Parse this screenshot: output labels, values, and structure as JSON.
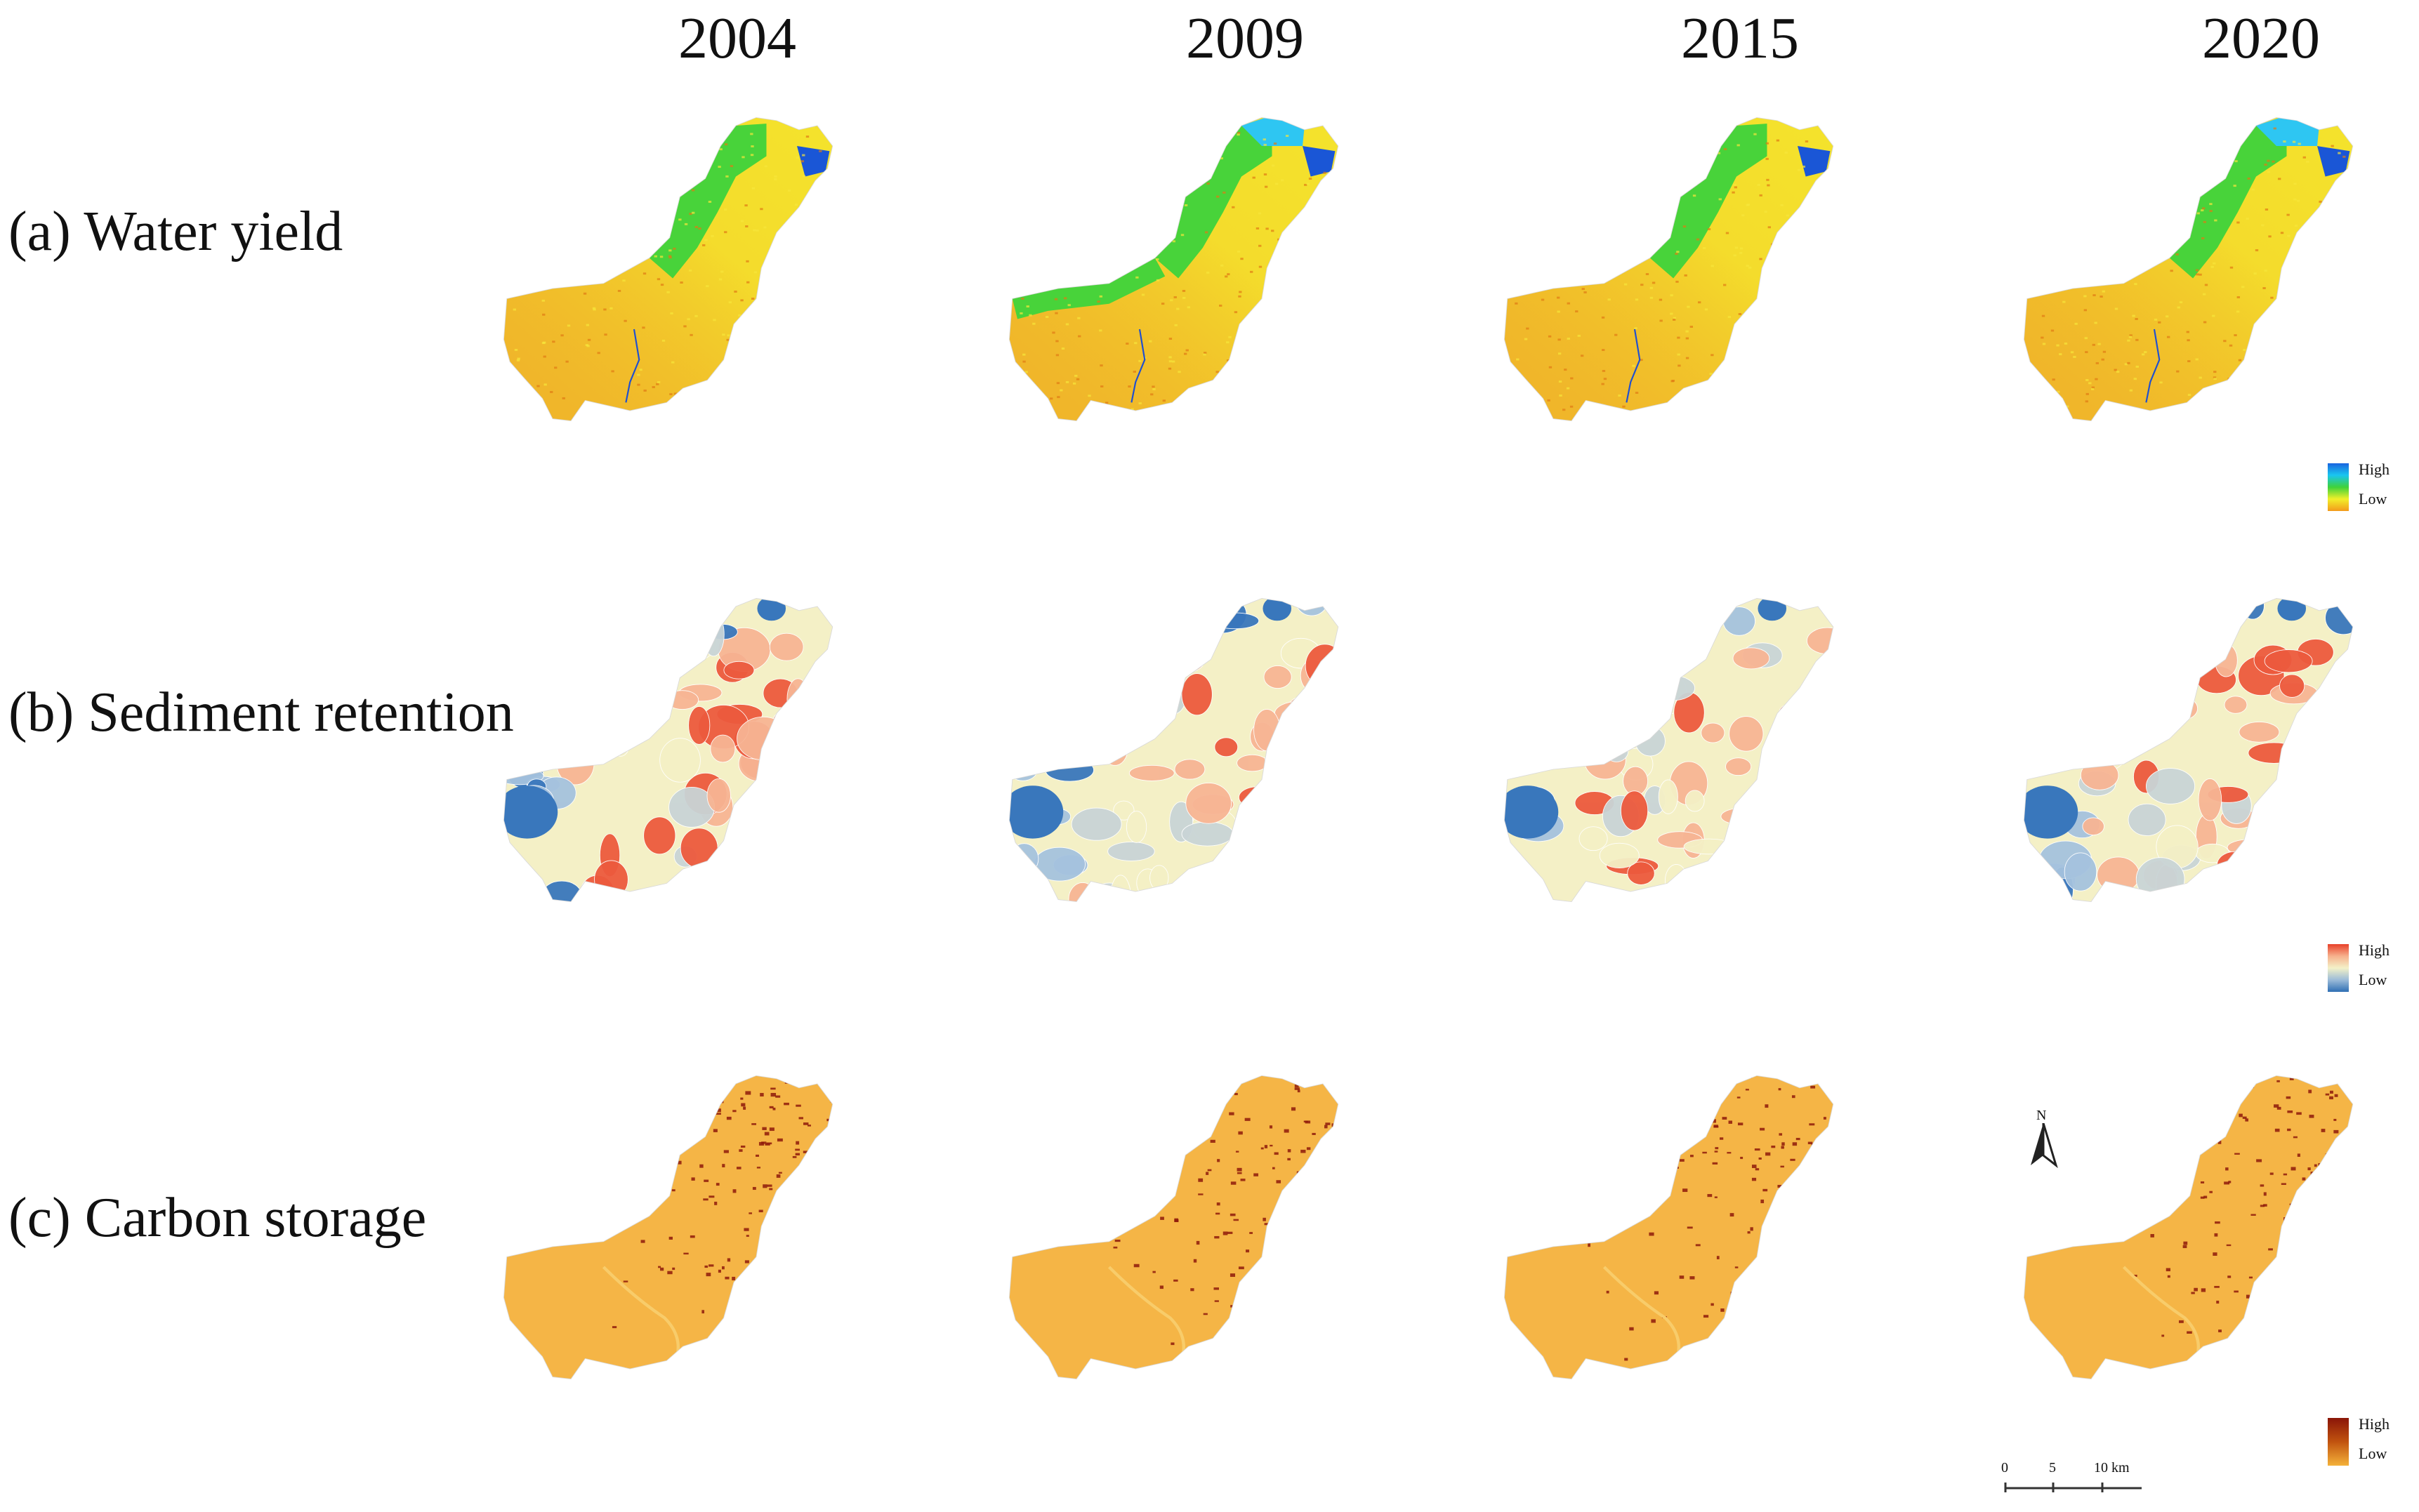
{
  "years": [
    "2004",
    "2009",
    "2015",
    "2020"
  ],
  "rows": [
    {
      "label": "(a) Water yield",
      "legend": {
        "high": "High",
        "low": "Low",
        "colors": [
          "#1a64e0",
          "#19c6f0",
          "#3fd23a",
          "#f2f02a",
          "#f39a1c"
        ]
      }
    },
    {
      "label": "(b) Sediment retention",
      "legend": {
        "high": "High",
        "low": "Low",
        "colors": [
          "#e8412a",
          "#f6b08c",
          "#f4f1c8",
          "#9bbbd8",
          "#2f6fb4"
        ]
      }
    },
    {
      "label": "(c) Carbon storage",
      "legend": {
        "high": "High",
        "low": "Low",
        "colors": [
          "#8a1508",
          "#c1530f",
          "#f4b23a"
        ]
      }
    }
  ],
  "north_arrow": {
    "label": "N",
    "icon": "north-arrow-icon"
  },
  "scale_bar": {
    "ticks": [
      "0",
      "5",
      "10 km"
    ]
  },
  "colors": {
    "water_base": "#f0b42a",
    "water_mid": "#f5e92c",
    "water_green": "#48d33a",
    "water_cyan": "#2ec6f2",
    "water_blue": "#1a56d6",
    "sed_red": "#ec5a3e",
    "sed_lightred": "#f7b594",
    "sed_cream": "#f4f0c6",
    "sed_grey": "#c9d4d6",
    "sed_lightblue": "#a5c2de",
    "sed_blue": "#3977bc",
    "carbon_base": "#f5b546",
    "carbon_dark": "#8e1a0b"
  }
}
